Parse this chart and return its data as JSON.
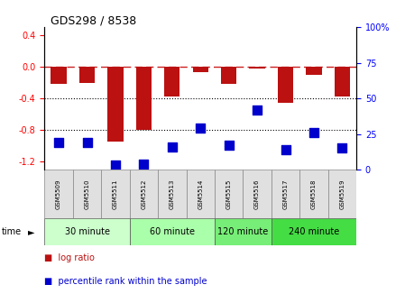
{
  "title": "GDS298 / 8538",
  "samples": [
    "GSM5509",
    "GSM5510",
    "GSM5511",
    "GSM5512",
    "GSM5513",
    "GSM5514",
    "GSM5515",
    "GSM5516",
    "GSM5517",
    "GSM5518",
    "GSM5519"
  ],
  "log_ratio": [
    -0.22,
    -0.2,
    -0.95,
    -0.8,
    -0.38,
    -0.07,
    -0.22,
    -0.02,
    -0.46,
    -0.1,
    -0.38
  ],
  "percentile": [
    19,
    19,
    3,
    4,
    16,
    29,
    17,
    42,
    14,
    26,
    15
  ],
  "time_groups": [
    {
      "label": "30 minute",
      "start": 0,
      "end": 3,
      "color": "#ccffcc"
    },
    {
      "label": "60 minute",
      "start": 3,
      "end": 6,
      "color": "#aaffaa"
    },
    {
      "label": "120 minute",
      "start": 6,
      "end": 8,
      "color": "#77ee77"
    },
    {
      "label": "240 minute",
      "start": 8,
      "end": 11,
      "color": "#44dd44"
    }
  ],
  "bar_color": "#bb1111",
  "point_color": "#0000cc",
  "dashed_line_color": "#cc2222",
  "ylim_left": [
    -1.3,
    0.5
  ],
  "ylim_right": [
    0,
    100
  ],
  "yticks_left": [
    0.4,
    0.0,
    -0.4,
    -0.8,
    -1.2
  ],
  "yticks_right": [
    100,
    75,
    50,
    25,
    0
  ],
  "bar_width": 0.55,
  "point_size": 55
}
